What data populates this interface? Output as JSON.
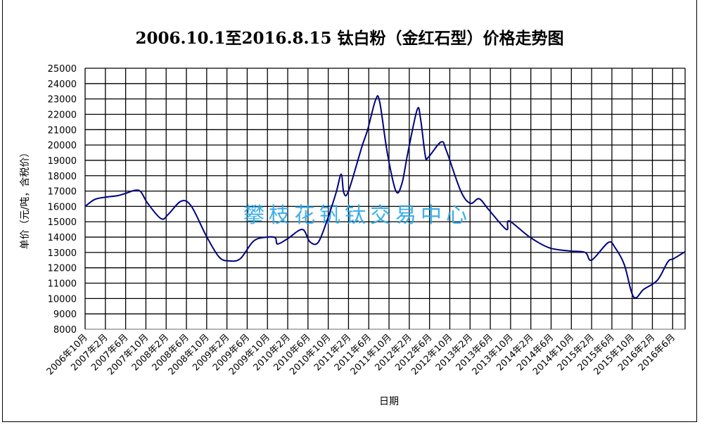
{
  "chart_data": {
    "type": "line",
    "title": "2006.10.1至2016.8.15  钛白粉（金红石型）价格走势图",
    "xlabel": "日期",
    "ylabel": "单价（元/吨，含税价）",
    "watermark": "攀枝花钒钛交易中心",
    "ylim": [
      8000,
      25000
    ],
    "yticks": [
      8000,
      9000,
      10000,
      11000,
      12000,
      13000,
      14000,
      15000,
      16000,
      17000,
      18000,
      19000,
      20000,
      21000,
      22000,
      23000,
      24000,
      25000
    ],
    "xlim": [
      "2006-10-01",
      "2016-08-15"
    ],
    "xticks": [
      "2006年10月",
      "2007年2月",
      "2007年6月",
      "2007年10月",
      "2008年2月",
      "2008年6月",
      "2008年10月",
      "2009年2月",
      "2009年6月",
      "2009年10月",
      "2010年2月",
      "2010年6月",
      "2010年10月",
      "2011年2月",
      "2011年6月",
      "2011年10月",
      "2012年2月",
      "2012年6月",
      "2012年10月",
      "2013年2月",
      "2013年6月",
      "2013年10月",
      "2014年2月",
      "2014年6月",
      "2014年10月",
      "2015年2月",
      "2015年6月",
      "2015年10月",
      "2016年2月",
      "2016年6月"
    ],
    "grid": true,
    "line_color": "#000080",
    "watermark_color": "#29a8e8",
    "series": [
      {
        "x": [
          "2006-10-01",
          "2006-11-28",
          "2007-02-01",
          "2007-04-15",
          "2007-06-01",
          "2007-07-28",
          "2007-09-01",
          "2007-10-12",
          "2008-01-01",
          "2008-02-15",
          "2008-05-01",
          "2008-07-01",
          "2008-09-28",
          "2008-12-15",
          "2009-02-15",
          "2009-04-21",
          "2009-07-10",
          "2009-10-01",
          "2009-11-18",
          "2009-12-01",
          "2010-02-01",
          "2010-04-28",
          "2010-06-12",
          "2010-08-01",
          "2010-09-25",
          "2010-11-18",
          "2010-12-18",
          "2011-01-03",
          "2011-02-01",
          "2011-04-21",
          "2011-05-25",
          "2011-07-12",
          "2011-08-06",
          "2011-09-21",
          "2011-11-12",
          "2011-12-18",
          "2012-01-23",
          "2012-03-18",
          "2012-04-08",
          "2012-05-06",
          "2012-05-24",
          "2012-08-10",
          "2012-09-12",
          "2012-12-06",
          "2013-02-03",
          "2013-03-25",
          "2013-05-21",
          "2013-09-06",
          "2013-09-23",
          "2014-01-25",
          "2014-05-21",
          "2014-09-21",
          "2014-12-23",
          "2015-02-01",
          "2015-05-10",
          "2015-06-21",
          "2015-08-15",
          "2015-10-10",
          "2015-12-10",
          "2016-03-01",
          "2016-05-03",
          "2016-06-08",
          "2016-08-15"
        ],
        "y": [
          16000,
          16450,
          16600,
          16700,
          16850,
          17050,
          16950,
          16200,
          15200,
          15500,
          16350,
          16000,
          14100,
          12700,
          12450,
          12600,
          13750,
          14000,
          13950,
          13550,
          13900,
          14500,
          13700,
          13650,
          15100,
          16900,
          18100,
          16900,
          17000,
          19900,
          21000,
          22950,
          22800,
          19500,
          17000,
          17500,
          19500,
          22300,
          21700,
          19300,
          19200,
          20200,
          19600,
          17000,
          16200,
          16500,
          15800,
          14500,
          15050,
          14000,
          13300,
          13100,
          13000,
          12500,
          13650,
          13300,
          12200,
          10100,
          10600,
          11200,
          12400,
          12600,
          13050
        ]
      }
    ]
  }
}
